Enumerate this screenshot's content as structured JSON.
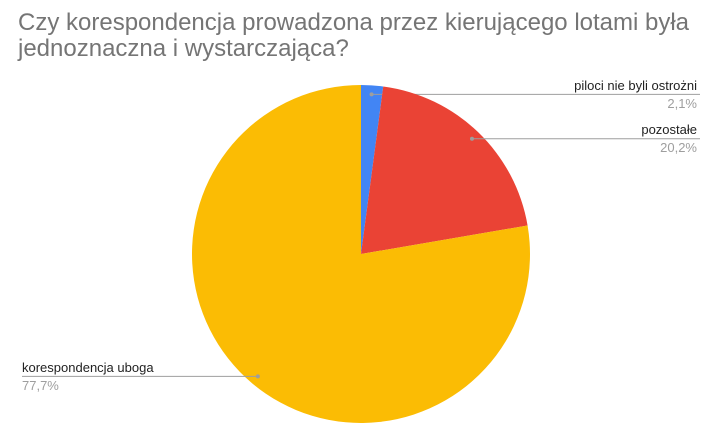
{
  "chart_data": {
    "type": "pie",
    "title": "Czy korespondencja prowadzona przez kierującego lotami była jednoznaczna i wystarczająca?",
    "categories": [
      "piloci nie byli ostrożni",
      "pozostałe",
      "korespondencja uboga"
    ],
    "values": [
      2.1,
      20.2,
      77.7
    ],
    "value_labels": [
      "2,1%",
      "20,2%",
      "77,7%"
    ],
    "colors": [
      "#4285f4",
      "#ea4335",
      "#fbbc04"
    ]
  }
}
